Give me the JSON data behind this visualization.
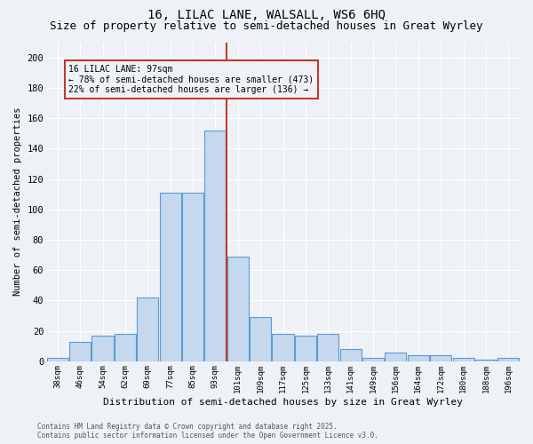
{
  "title1": "16, LILAC LANE, WALSALL, WS6 6HQ",
  "title2": "Size of property relative to semi-detached houses in Great Wyrley",
  "xlabel": "Distribution of semi-detached houses by size in Great Wyrley",
  "ylabel": "Number of semi-detached properties",
  "categories": [
    "38sqm",
    "46sqm",
    "54sqm",
    "62sqm",
    "69sqm",
    "77sqm",
    "85sqm",
    "93sqm",
    "101sqm",
    "109sqm",
    "117sqm",
    "125sqm",
    "133sqm",
    "141sqm",
    "149sqm",
    "156sqm",
    "164sqm",
    "172sqm",
    "180sqm",
    "188sqm",
    "196sqm"
  ],
  "values": [
    2,
    13,
    17,
    18,
    42,
    111,
    111,
    152,
    69,
    29,
    18,
    17,
    18,
    8,
    2,
    6,
    4,
    4,
    2,
    1,
    2
  ],
  "bar_color": "#c5d8ed",
  "bar_edge_color": "#5b9bd5",
  "vline_color": "#c0392b",
  "annotation_title": "16 LILAC LANE: 97sqm",
  "annotation_line1": "← 78% of semi-detached houses are smaller (473)",
  "annotation_line2": "22% of semi-detached houses are larger (136) →",
  "annotation_box_color": "#c0392b",
  "footnote1": "Contains HM Land Registry data © Crown copyright and database right 2025.",
  "footnote2": "Contains public sector information licensed under the Open Government Licence v3.0.",
  "ylim": [
    0,
    210
  ],
  "yticks": [
    0,
    20,
    40,
    60,
    80,
    100,
    120,
    140,
    160,
    180,
    200
  ],
  "bg_color": "#eef2f7",
  "grid_color": "#ffffff",
  "title_fontsize": 10,
  "subtitle_fontsize": 9
}
